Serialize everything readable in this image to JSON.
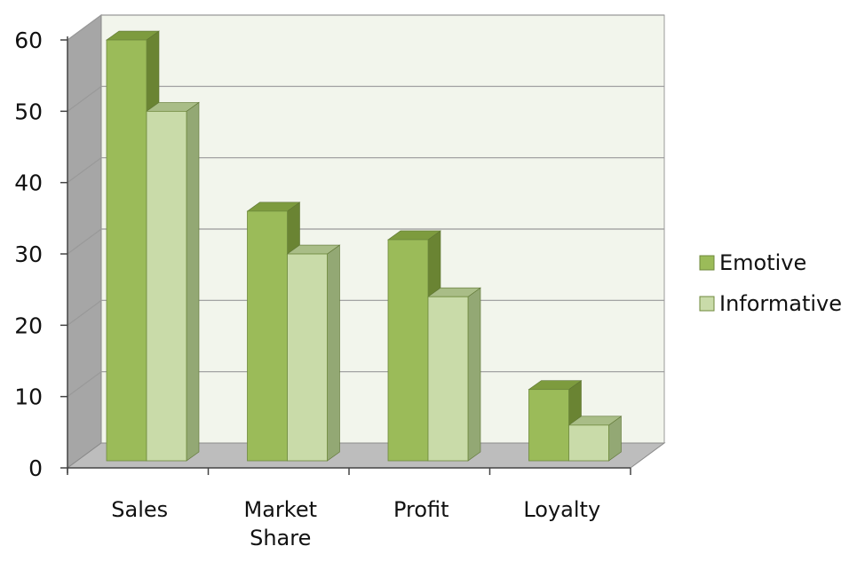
{
  "chart_data": {
    "type": "bar",
    "categories": [
      [
        "Sales"
      ],
      [
        "Market",
        "Share"
      ],
      [
        "Profit"
      ],
      [
        "Loyalty"
      ]
    ],
    "series": [
      {
        "name": "Emotive",
        "values": [
          59,
          35,
          31,
          10
        ],
        "color": "#9bbb59",
        "top_color": "#7d9b3e",
        "side_color": "#6a8433"
      },
      {
        "name": "Informative",
        "values": [
          49,
          29,
          23,
          5
        ],
        "color": "#c9dba9",
        "top_color": "#a9bd87",
        "side_color": "#93a874"
      }
    ],
    "yticks": [
      "0",
      "10",
      "20",
      "30",
      "40",
      "50",
      "60"
    ],
    "ylim": [
      0,
      60
    ],
    "grid": true,
    "legend_position": "right",
    "colors": {
      "wall": "#f2f5ec",
      "side_wall": "#a6a6a6",
      "floor": "#bdbdbd",
      "gridline": "#999999"
    }
  }
}
